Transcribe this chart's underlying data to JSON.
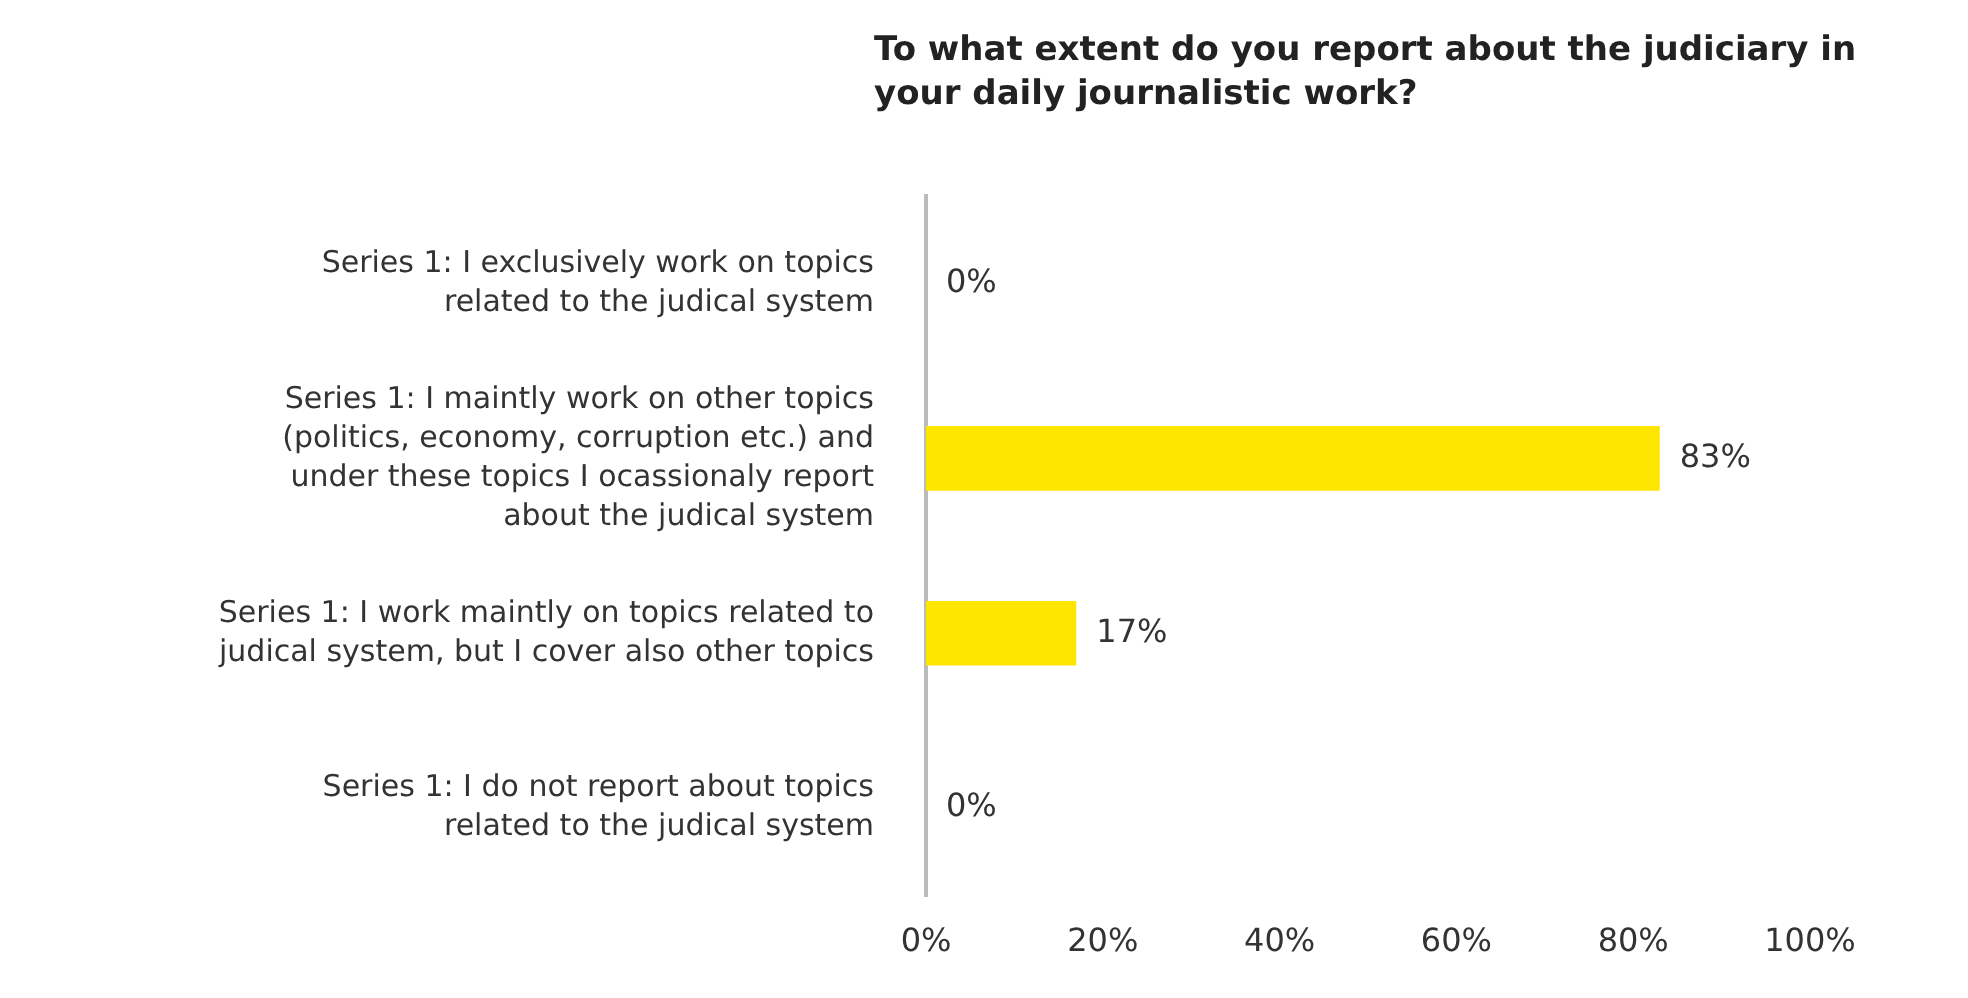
{
  "chart_data": {
    "type": "bar",
    "orientation": "horizontal",
    "title": "To what extent do you report about the judiciary in your daily journalistic work?",
    "categories": [
      "Series 1: I exclusively work on topics related to the judical system",
      "Series 1: I maintly work on other topics (politics, economy, corruption etc.) and under these topics I ocassionaly report about the judical system",
      "Series 1: I work maintly on topics related to judical system, but I cover also other topics",
      "Series 1: I do not report about topics related to the judical system"
    ],
    "values": [
      0,
      83,
      17,
      0
    ],
    "value_labels": [
      "0%",
      "83%",
      "17%",
      "0%"
    ],
    "color": "#ffe600",
    "xlim": [
      0,
      100
    ],
    "xticks": [
      {
        "value": 0,
        "label": "0%"
      },
      {
        "value": 20,
        "label": "20%"
      },
      {
        "value": 40,
        "label": "40%"
      },
      {
        "value": 60,
        "label": "60%"
      },
      {
        "value": 80,
        "label": "80%"
      },
      {
        "value": 100,
        "label": "100%"
      }
    ],
    "grid": false,
    "legend": false
  }
}
